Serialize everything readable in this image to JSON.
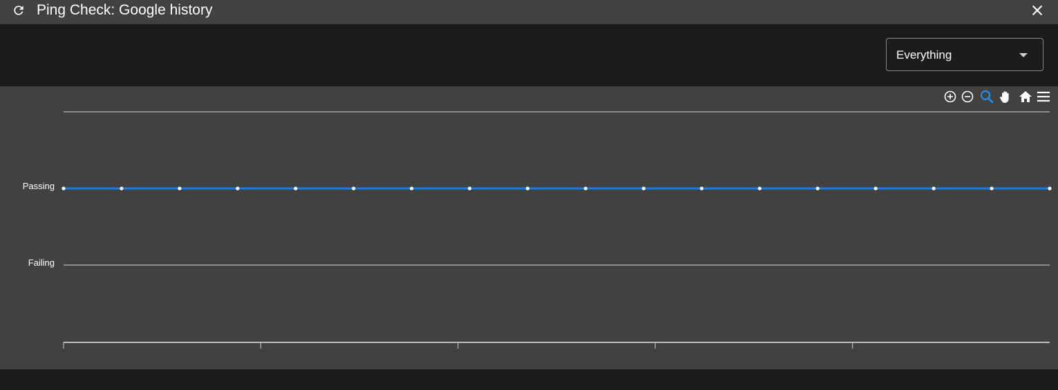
{
  "window": {
    "title": "Ping Check: Google history",
    "icons": {
      "refresh": "refresh-icon",
      "close": "close-icon"
    }
  },
  "filter": {
    "selected": "Everything",
    "caret_icon": "caret-down-icon"
  },
  "chart_tools": [
    "zoom-in-icon",
    "zoom-out-icon",
    "selection-zoom-icon",
    "pan-hand-icon",
    "reset-home-icon",
    "menu-icon"
  ],
  "colors": {
    "series_line": "#1f7ae0",
    "active_tool": "#1f8ef1",
    "point_fill": "#ffffff",
    "gridline": "#d8d8d8",
    "panel_bg": "#414141",
    "page_bg": "#1c1c1c"
  },
  "chart_data": {
    "type": "line",
    "y_categories": [
      "Failing",
      "Passing"
    ],
    "series": [
      {
        "values": [
          "Passing",
          "Passing",
          "Passing",
          "Passing",
          "Passing",
          "Passing",
          "Passing",
          "Passing",
          "Passing",
          "Passing",
          "Passing",
          "Passing",
          "Passing",
          "Passing",
          "Passing",
          "Passing",
          "Passing",
          "Passing"
        ]
      }
    ],
    "x_tick_count": 6,
    "grid": true,
    "legend": "none"
  }
}
